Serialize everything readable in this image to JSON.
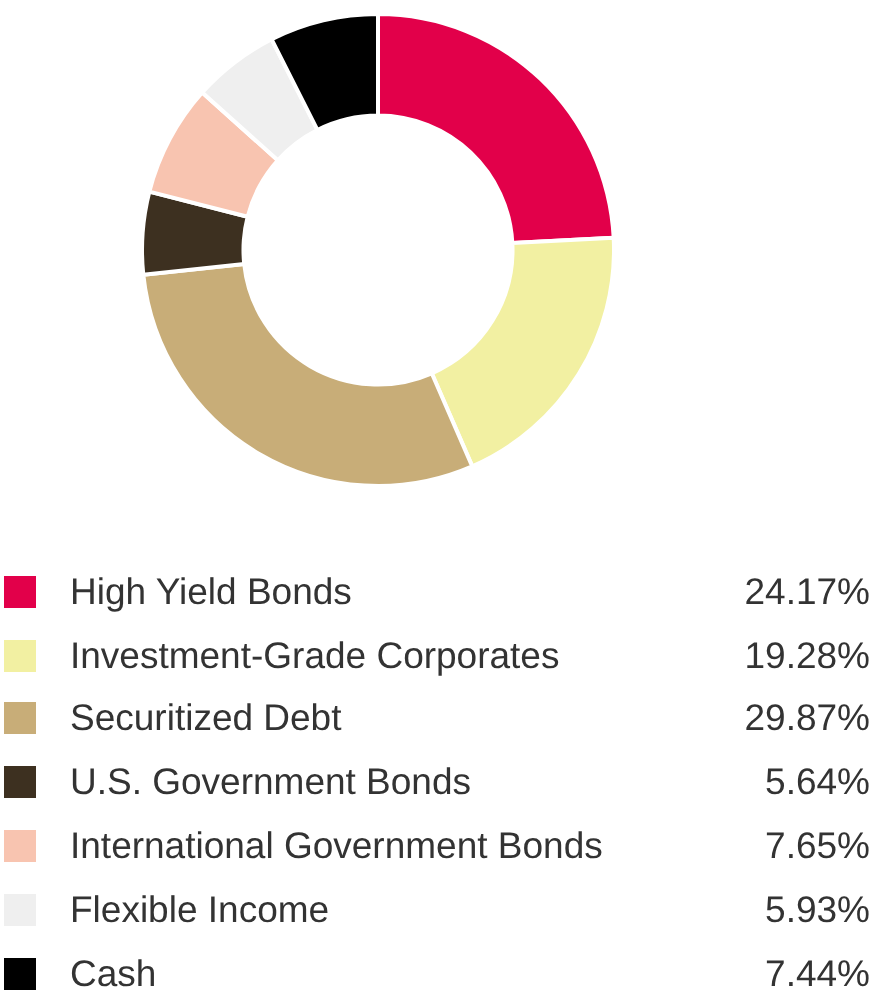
{
  "chart_data": {
    "type": "donut",
    "categories": [
      "High Yield Bonds",
      "Investment-Grade Corporates",
      "Securitized Debt",
      "U.S. Government Bonds",
      "International Government Bonds",
      "Flexible Income",
      "Cash"
    ],
    "values": [
      24.17,
      19.28,
      29.87,
      5.64,
      7.65,
      5.93,
      7.44
    ],
    "colors": [
      "#e2004a",
      "#f2f0a2",
      "#c8ad78",
      "#3d3020",
      "#f8c4b0",
      "#efefef",
      "#000000"
    ],
    "value_labels": [
      "24.17%",
      "19.28%",
      "29.87%",
      "5.64%",
      "7.65%",
      "5.93%",
      "7.44%"
    ],
    "legend": "bottom"
  }
}
